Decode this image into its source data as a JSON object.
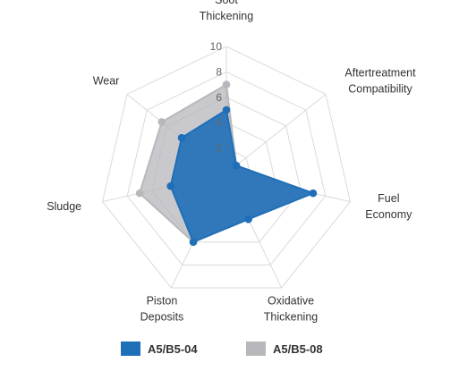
{
  "chart_data": {
    "type": "radar",
    "title": "",
    "axes": [
      [
        "Soot",
        "Thickening"
      ],
      [
        "Aftertreatment",
        "Compatibility"
      ],
      [
        "Fuel",
        "Economy"
      ],
      [
        "Oxidative",
        "Thickening"
      ],
      [
        "Piston",
        "Deposits"
      ],
      [
        "Sludge"
      ],
      [
        "Wear"
      ]
    ],
    "categories": [
      "Soot Thickening",
      "Aftertreatment Compatibility",
      "Fuel Economy",
      "Oxidative Thickening",
      "Piston Deposits",
      "Sludge",
      "Wear"
    ],
    "rlim": [
      0,
      10
    ],
    "ticks": [
      0,
      2,
      4,
      6,
      8,
      10
    ],
    "tick_labels": [
      "0",
      "2",
      "4",
      "6",
      "8",
      "10"
    ],
    "grid": true,
    "legend_position": "bottom",
    "series": [
      {
        "name": "A5/B5-08",
        "color": "#b7b7bc",
        "fill_opacity": 0.75,
        "values": [
          7,
          1,
          7,
          4,
          6,
          7,
          6.5
        ]
      },
      {
        "name": "A5/B5-04",
        "color": "#1f6fb8",
        "fill_opacity": 0.9,
        "values": [
          5,
          1,
          7,
          4,
          6,
          4.5,
          4.5
        ]
      }
    ],
    "legend": [
      {
        "name": "A5/B5-04",
        "color": "#1f6fb8"
      },
      {
        "name": "A5/B5-08",
        "color": "#b7b7bc"
      }
    ]
  }
}
